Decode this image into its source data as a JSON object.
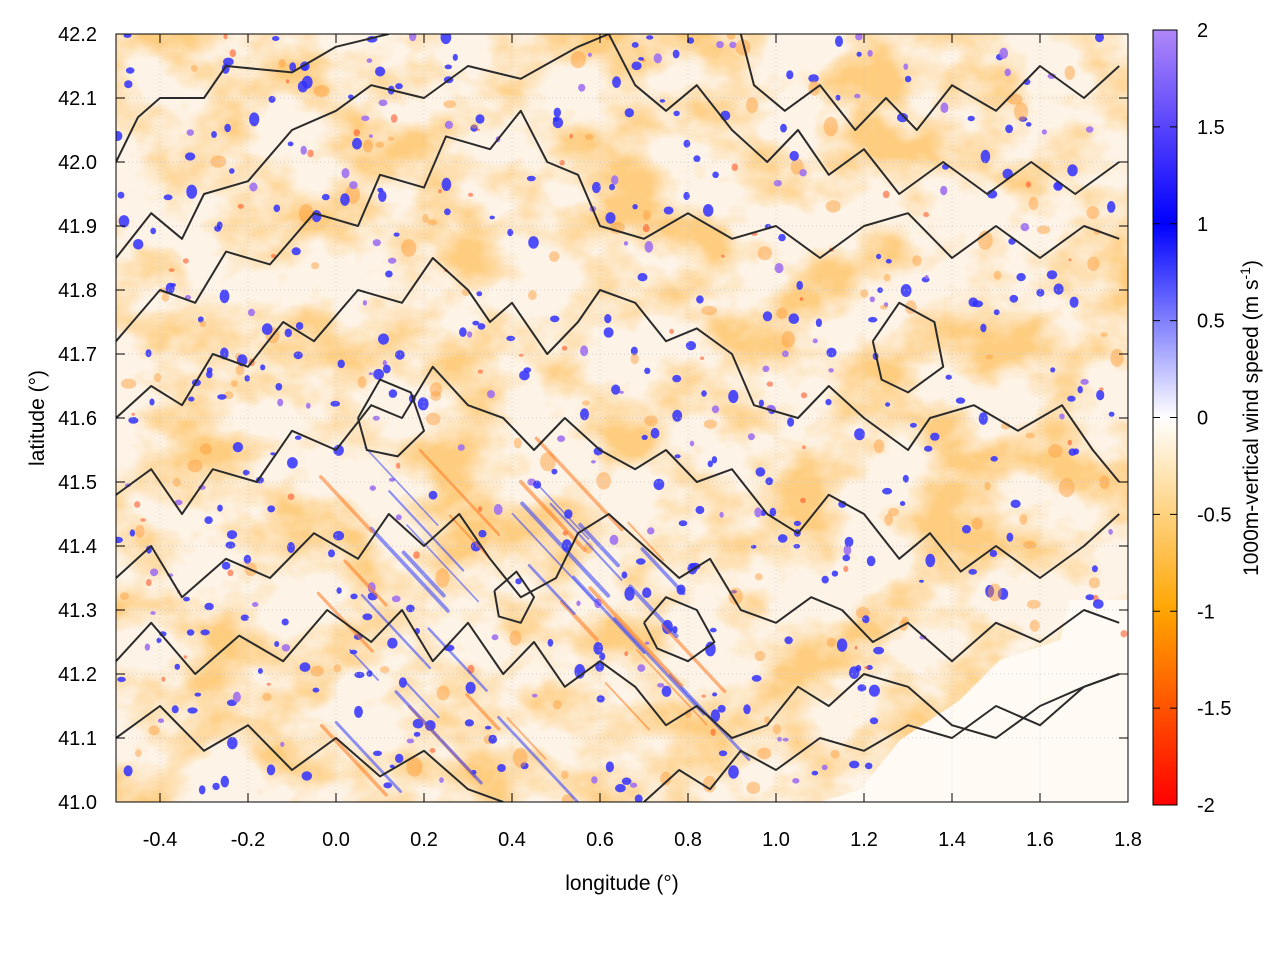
{
  "chart_data": {
    "type": "heatmap",
    "title": "",
    "xlabel": "longitude (°)",
    "ylabel": "latitude (°)",
    "xlim": [
      -0.5,
      1.8
    ],
    "ylim": [
      41.0,
      42.2
    ],
    "xticks": [
      -0.4,
      -0.2,
      0.0,
      0.2,
      0.4,
      0.6,
      0.8,
      1.0,
      1.2,
      1.4,
      1.6,
      1.8
    ],
    "xtick_labels": [
      "-0.4",
      "-0.2",
      "0.0",
      "0.2",
      "0.4",
      "0.6",
      "0.8",
      "1.0",
      "1.2",
      "1.4",
      "1.6",
      "1.8"
    ],
    "yticks": [
      41.0,
      41.1,
      41.2,
      41.3,
      41.4,
      41.5,
      41.6,
      41.7,
      41.8,
      41.9,
      42.0,
      42.1,
      42.2
    ],
    "ytick_labels": [
      "41.0",
      "41.1",
      "41.2",
      "41.3",
      "41.4",
      "41.5",
      "41.6",
      "41.7",
      "41.8",
      "41.9",
      "42.0",
      "42.1",
      "42.2"
    ],
    "grid": true,
    "colorbar": {
      "label": "1000m-vertical wind speed (m s",
      "label_superscript": "-1",
      "label_suffix": ")",
      "range": [
        -2,
        2
      ],
      "ticks": [
        2,
        1.5,
        1,
        0.5,
        0,
        -0.5,
        -1,
        -1.5,
        -2
      ],
      "tick_labels": [
        "2",
        "1.5",
        "1",
        "0.5",
        "0",
        "-0.5",
        "-1",
        "-1.5",
        "-2"
      ],
      "colors": [
        {
          "value": -2,
          "color": "#ff0000"
        },
        {
          "value": -1,
          "color": "#ffa500"
        },
        {
          "value": 0,
          "color": "#ffffff"
        },
        {
          "value": 1,
          "color": "#0000ff"
        },
        {
          "value": 2,
          "color": "#b088f8"
        }
      ]
    },
    "contours": [
      [
        [
          -0.5,
          42.0
        ],
        [
          -0.45,
          42.07
        ],
        [
          -0.4,
          42.1
        ],
        [
          -0.3,
          42.1
        ],
        [
          -0.25,
          42.15
        ],
        [
          -0.1,
          42.14
        ],
        [
          0.0,
          42.18
        ],
        [
          0.12,
          42.2
        ]
      ],
      [
        [
          -0.5,
          41.85
        ],
        [
          -0.42,
          41.92
        ],
        [
          -0.35,
          41.88
        ],
        [
          -0.3,
          41.95
        ],
        [
          -0.2,
          41.97
        ],
        [
          -0.1,
          42.05
        ],
        [
          0.0,
          42.08
        ],
        [
          0.08,
          42.12
        ],
        [
          0.2,
          42.1
        ],
        [
          0.3,
          42.15
        ],
        [
          0.42,
          42.13
        ],
        [
          0.55,
          42.18
        ],
        [
          0.62,
          42.2
        ]
      ],
      [
        [
          -0.5,
          41.72
        ],
        [
          -0.4,
          41.8
        ],
        [
          -0.32,
          41.78
        ],
        [
          -0.25,
          41.86
        ],
        [
          -0.15,
          41.84
        ],
        [
          -0.05,
          41.92
        ],
        [
          0.05,
          41.9
        ],
        [
          0.1,
          41.98
        ],
        [
          0.2,
          41.96
        ],
        [
          0.25,
          42.04
        ],
        [
          0.35,
          42.02
        ],
        [
          0.42,
          42.08
        ],
        [
          0.48,
          42.0
        ],
        [
          0.55,
          41.98
        ],
        [
          0.6,
          41.9
        ],
        [
          0.7,
          41.88
        ],
        [
          0.8,
          41.92
        ],
        [
          0.9,
          41.88
        ],
        [
          1.0,
          41.9
        ],
        [
          1.1,
          41.85
        ],
        [
          1.2,
          41.9
        ],
        [
          1.3,
          41.92
        ],
        [
          1.4,
          41.85
        ],
        [
          1.5,
          41.9
        ],
        [
          1.6,
          41.85
        ],
        [
          1.7,
          41.9
        ],
        [
          1.78,
          41.88
        ]
      ],
      [
        [
          -0.5,
          41.6
        ],
        [
          -0.42,
          41.65
        ],
        [
          -0.35,
          41.62
        ],
        [
          -0.28,
          41.7
        ],
        [
          -0.2,
          41.68
        ],
        [
          -0.12,
          41.75
        ],
        [
          -0.05,
          41.72
        ],
        [
          0.05,
          41.8
        ],
        [
          0.15,
          41.78
        ],
        [
          0.22,
          41.85
        ],
        [
          0.3,
          41.8
        ],
        [
          0.35,
          41.75
        ],
        [
          0.4,
          41.78
        ],
        [
          0.48,
          41.7
        ],
        [
          0.55,
          41.75
        ],
        [
          0.6,
          41.8
        ],
        [
          0.68,
          41.78
        ],
        [
          0.75,
          41.72
        ],
        [
          0.82,
          41.74
        ],
        [
          0.9,
          41.7
        ],
        [
          0.95,
          41.62
        ],
        [
          1.05,
          41.6
        ],
        [
          1.12,
          41.65
        ],
        [
          1.2,
          41.6
        ],
        [
          1.3,
          41.55
        ],
        [
          1.35,
          41.6
        ],
        [
          1.45,
          41.62
        ],
        [
          1.55,
          41.58
        ],
        [
          1.65,
          41.62
        ],
        [
          1.72,
          41.55
        ],
        [
          1.78,
          41.5
        ]
      ],
      [
        [
          -0.5,
          41.48
        ],
        [
          -0.42,
          41.52
        ],
        [
          -0.35,
          41.45
        ],
        [
          -0.28,
          41.52
        ],
        [
          -0.18,
          41.5
        ],
        [
          -0.1,
          41.58
        ],
        [
          0.0,
          41.55
        ],
        [
          0.08,
          41.62
        ],
        [
          0.15,
          41.6
        ],
        [
          0.22,
          41.68
        ],
        [
          0.3,
          41.62
        ],
        [
          0.38,
          41.6
        ],
        [
          0.45,
          41.55
        ],
        [
          0.52,
          41.6
        ],
        [
          0.6,
          41.55
        ],
        [
          0.68,
          41.52
        ],
        [
          0.75,
          41.55
        ],
        [
          0.82,
          41.5
        ],
        [
          0.9,
          41.52
        ],
        [
          0.98,
          41.45
        ],
        [
          1.05,
          41.42
        ],
        [
          1.12,
          41.48
        ],
        [
          1.2,
          41.45
        ],
        [
          1.28,
          41.38
        ],
        [
          1.35,
          41.42
        ],
        [
          1.42,
          41.36
        ],
        [
          1.5,
          41.4
        ],
        [
          1.6,
          41.35
        ],
        [
          1.7,
          41.4
        ],
        [
          1.78,
          41.45
        ]
      ],
      [
        [
          -0.5,
          41.35
        ],
        [
          -0.42,
          41.4
        ],
        [
          -0.35,
          41.32
        ],
        [
          -0.25,
          41.38
        ],
        [
          -0.15,
          41.35
        ],
        [
          -0.05,
          41.42
        ],
        [
          0.05,
          41.38
        ],
        [
          0.12,
          41.45
        ],
        [
          0.2,
          41.4
        ],
        [
          0.28,
          41.45
        ],
        [
          0.35,
          41.38
        ],
        [
          0.42,
          41.32
        ],
        [
          0.5,
          41.35
        ],
        [
          0.55,
          41.42
        ],
        [
          0.62,
          41.45
        ],
        [
          0.7,
          41.4
        ],
        [
          0.78,
          41.35
        ],
        [
          0.85,
          41.38
        ],
        [
          0.92,
          41.3
        ],
        [
          1.0,
          41.28
        ],
        [
          1.08,
          41.32
        ],
        [
          1.15,
          41.3
        ],
        [
          1.22,
          41.25
        ],
        [
          1.3,
          41.28
        ],
        [
          1.4,
          41.22
        ],
        [
          1.5,
          41.28
        ],
        [
          1.6,
          41.25
        ],
        [
          1.7,
          41.3
        ],
        [
          1.78,
          41.28
        ]
      ],
      [
        [
          -0.5,
          41.22
        ],
        [
          -0.42,
          41.28
        ],
        [
          -0.32,
          41.2
        ],
        [
          -0.22,
          41.26
        ],
        [
          -0.12,
          41.22
        ],
        [
          -0.02,
          41.3
        ],
        [
          0.08,
          41.25
        ],
        [
          0.15,
          41.3
        ],
        [
          0.22,
          41.22
        ],
        [
          0.3,
          41.28
        ],
        [
          0.38,
          41.2
        ],
        [
          0.45,
          41.25
        ],
        [
          0.52,
          41.18
        ],
        [
          0.6,
          41.22
        ],
        [
          0.68,
          41.18
        ],
        [
          0.75,
          41.12
        ],
        [
          0.82,
          41.15
        ],
        [
          0.9,
          41.1
        ],
        [
          0.98,
          41.12
        ],
        [
          1.05,
          41.18
        ],
        [
          1.12,
          41.15
        ],
        [
          1.2,
          41.2
        ],
        [
          1.3,
          41.18
        ],
        [
          1.4,
          41.12
        ],
        [
          1.5,
          41.1
        ],
        [
          1.6,
          41.15
        ],
        [
          1.7,
          41.18
        ],
        [
          1.78,
          41.2
        ]
      ],
      [
        [
          -0.5,
          41.1
        ],
        [
          -0.4,
          41.15
        ],
        [
          -0.3,
          41.08
        ],
        [
          -0.2,
          41.12
        ],
        [
          -0.1,
          41.05
        ],
        [
          0.0,
          41.1
        ],
        [
          0.1,
          41.04
        ],
        [
          0.2,
          41.08
        ],
        [
          0.3,
          41.02
        ],
        [
          0.38,
          41.0
        ]
      ],
      [
        [
          0.7,
          41.0
        ],
        [
          0.78,
          41.05
        ],
        [
          0.85,
          41.02
        ],
        [
          0.92,
          41.08
        ],
        [
          1.0,
          41.05
        ],
        [
          1.1,
          41.1
        ],
        [
          1.2,
          41.08
        ],
        [
          1.3,
          41.12
        ],
        [
          1.4,
          41.1
        ],
        [
          1.5,
          41.15
        ],
        [
          1.6,
          41.12
        ],
        [
          1.7,
          41.18
        ],
        [
          1.78,
          41.2
        ]
      ],
      [
        [
          0.92,
          42.2
        ],
        [
          0.95,
          42.12
        ],
        [
          1.02,
          42.08
        ],
        [
          1.1,
          42.12
        ],
        [
          1.18,
          42.05
        ],
        [
          1.25,
          42.1
        ],
        [
          1.32,
          42.05
        ],
        [
          1.4,
          42.12
        ],
        [
          1.5,
          42.08
        ],
        [
          1.6,
          42.15
        ],
        [
          1.7,
          42.1
        ],
        [
          1.78,
          42.15
        ]
      ],
      [
        [
          0.62,
          42.2
        ],
        [
          0.68,
          42.12
        ],
        [
          0.75,
          42.08
        ],
        [
          0.82,
          42.12
        ],
        [
          0.9,
          42.05
        ],
        [
          0.98,
          42.0
        ],
        [
          1.05,
          42.05
        ],
        [
          1.12,
          41.98
        ],
        [
          1.2,
          42.02
        ],
        [
          1.28,
          41.95
        ],
        [
          1.38,
          42.0
        ],
        [
          1.48,
          41.95
        ],
        [
          1.58,
          42.0
        ],
        [
          1.68,
          41.95
        ],
        [
          1.78,
          42.0
        ]
      ],
      [
        [
          0.7,
          41.28
        ],
        [
          0.75,
          41.32
        ],
        [
          0.82,
          41.3
        ],
        [
          0.86,
          41.25
        ],
        [
          0.8,
          41.22
        ],
        [
          0.73,
          41.24
        ],
        [
          0.7,
          41.28
        ]
      ],
      [
        [
          0.36,
          41.33
        ],
        [
          0.41,
          41.36
        ],
        [
          0.45,
          41.32
        ],
        [
          0.42,
          41.28
        ],
        [
          0.37,
          41.29
        ],
        [
          0.36,
          41.33
        ]
      ],
      [
        [
          0.05,
          41.6
        ],
        [
          0.1,
          41.66
        ],
        [
          0.17,
          41.64
        ],
        [
          0.2,
          41.58
        ],
        [
          0.14,
          41.54
        ],
        [
          0.07,
          41.55
        ],
        [
          0.05,
          41.6
        ]
      ],
      [
        [
          1.22,
          41.72
        ],
        [
          1.28,
          41.78
        ],
        [
          1.36,
          41.75
        ],
        [
          1.38,
          41.68
        ],
        [
          1.3,
          41.64
        ],
        [
          1.24,
          41.66
        ],
        [
          1.22,
          41.72
        ]
      ]
    ]
  }
}
